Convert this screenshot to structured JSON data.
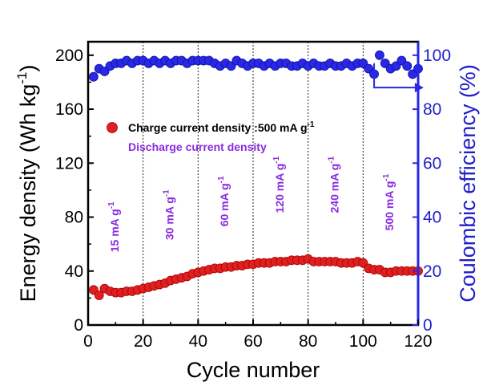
{
  "chart_data": {
    "type": "scatter",
    "xlabel": "Cycle number",
    "ylabel": "Energy density (Wh kg",
    "ylabel_sup": "-1",
    "ylabel_tail": ")",
    "y2label": "Coulombic efficiency (%)",
    "xlim": [
      0,
      120
    ],
    "ylim": [
      0,
      210
    ],
    "y2lim": [
      0,
      105
    ],
    "xticks": [
      "0",
      "20",
      "40",
      "60",
      "80",
      "100",
      "120"
    ],
    "xtick_values": [
      0,
      20,
      40,
      60,
      80,
      100,
      120
    ],
    "yticks": [
      "0",
      "40",
      "80",
      "120",
      "160",
      "200"
    ],
    "ytick_values": [
      0,
      40,
      80,
      120,
      160,
      200
    ],
    "y2ticks": [
      "0",
      "20",
      "40",
      "60",
      "80",
      "100"
    ],
    "y2tick_values": [
      0,
      20,
      40,
      60,
      80,
      100
    ],
    "section_dividers": [
      20,
      40,
      60,
      80,
      100
    ],
    "legend": [
      {
        "label": "Charge current density :500 mA g",
        "sup": "-1",
        "color": "#e02020"
      },
      {
        "label": "Discharge current density",
        "color": "#8a2be2"
      }
    ],
    "annotations": [
      {
        "text": "15 mA g",
        "sup": "-1",
        "x": 11,
        "y": 54
      },
      {
        "text": "30 mA g",
        "sup": "-1",
        "x": 31,
        "y": 63
      },
      {
        "text": "60 mA g",
        "sup": "-1",
        "x": 51,
        "y": 73
      },
      {
        "text": "120 mA g",
        "sup": "-1",
        "x": 71,
        "y": 83
      },
      {
        "text": "240 mA g",
        "sup": "-1",
        "x": 91,
        "y": 83
      },
      {
        "text": "500 mA g",
        "sup": "-1",
        "x": 111,
        "y": 70
      }
    ],
    "arrow": {
      "from_x": 104,
      "from_y2": 97,
      "corner_y2": 88,
      "to_x": 122
    },
    "series": [
      {
        "name": "Charge current density :500 mA g-1",
        "axis": "left",
        "color": "#e02020",
        "x": [
          2,
          4,
          6,
          8,
          10,
          12,
          14,
          16,
          18,
          20,
          22,
          24,
          26,
          28,
          30,
          32,
          34,
          36,
          38,
          40,
          42,
          44,
          46,
          48,
          50,
          52,
          54,
          56,
          58,
          60,
          62,
          64,
          66,
          68,
          70,
          72,
          74,
          76,
          78,
          80,
          82,
          84,
          86,
          88,
          90,
          92,
          94,
          96,
          98,
          100,
          102,
          104,
          106,
          108,
          110,
          112,
          114,
          116,
          118,
          120
        ],
        "values": [
          26,
          22,
          27,
          25,
          24,
          24,
          25,
          25,
          26,
          27,
          28,
          29,
          30,
          31,
          33,
          34,
          35,
          36,
          38,
          39,
          40,
          41,
          42,
          42,
          43,
          43,
          44,
          44,
          45,
          45,
          46,
          46,
          46,
          47,
          47,
          47,
          48,
          48,
          48,
          49,
          47,
          47,
          47,
          47,
          47,
          46,
          46,
          46,
          47,
          46,
          42,
          41,
          41,
          39,
          39,
          40,
          40,
          40,
          40,
          40
        ]
      },
      {
        "name": "Coulombic efficiency",
        "axis": "right",
        "color": "#2828e6",
        "x": [
          2,
          4,
          6,
          8,
          10,
          12,
          14,
          16,
          18,
          20,
          22,
          24,
          26,
          28,
          30,
          32,
          34,
          36,
          38,
          40,
          42,
          44,
          46,
          48,
          50,
          52,
          54,
          56,
          58,
          60,
          62,
          64,
          66,
          68,
          70,
          72,
          74,
          76,
          78,
          80,
          82,
          84,
          86,
          88,
          90,
          92,
          94,
          96,
          98,
          100,
          102,
          104,
          106,
          108,
          110,
          112,
          114,
          116,
          118,
          120
        ],
        "values": [
          92,
          95,
          94,
          96,
          97,
          97,
          98,
          97,
          98,
          98,
          97,
          98,
          97,
          98,
          97,
          98,
          98,
          97,
          98,
          98,
          98,
          98,
          97,
          96,
          97,
          96,
          98,
          97,
          96,
          97,
          97,
          96,
          97,
          96,
          97,
          97,
          96,
          96,
          97,
          96,
          97,
          96,
          96,
          97,
          96,
          96,
          97,
          96,
          97,
          97,
          95,
          93,
          100,
          97,
          95,
          96,
          98,
          96,
          93,
          95
        ]
      }
    ]
  }
}
